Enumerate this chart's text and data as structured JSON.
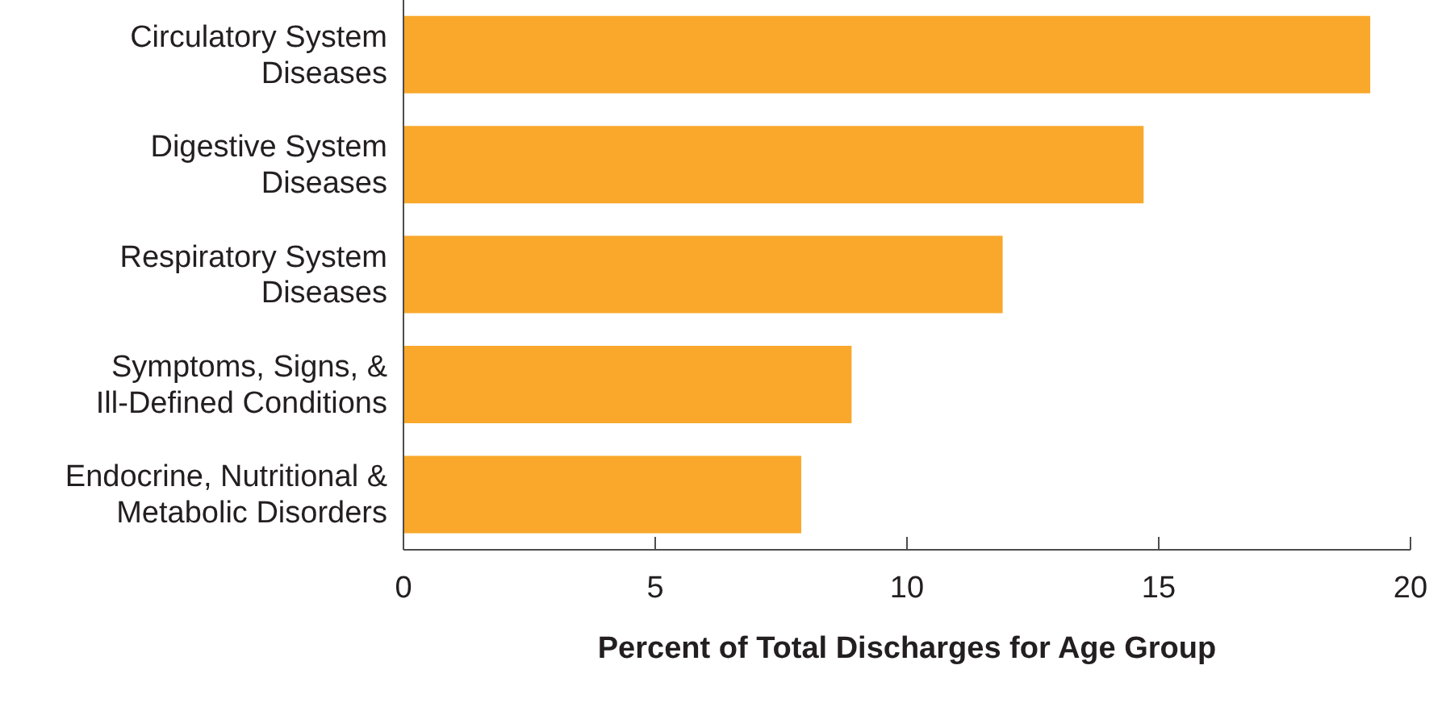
{
  "chart_data": {
    "type": "bar",
    "orientation": "horizontal",
    "xlabel": "Percent of Total Discharges for Age Group",
    "categories": [
      "Circulatory System Diseases",
      "Digestive System Diseases",
      "Respiratory System Diseases",
      "Symptoms, Signs, & Ill-Defined Conditions",
      "Endocrine, Nutritional & Metabolic Disorders"
    ],
    "values": [
      19.2,
      14.7,
      11.9,
      8.9,
      7.9
    ],
    "color": "#f9a82b",
    "xlim": [
      0,
      20
    ],
    "xticks": [
      0,
      5,
      10,
      15,
      20
    ]
  }
}
